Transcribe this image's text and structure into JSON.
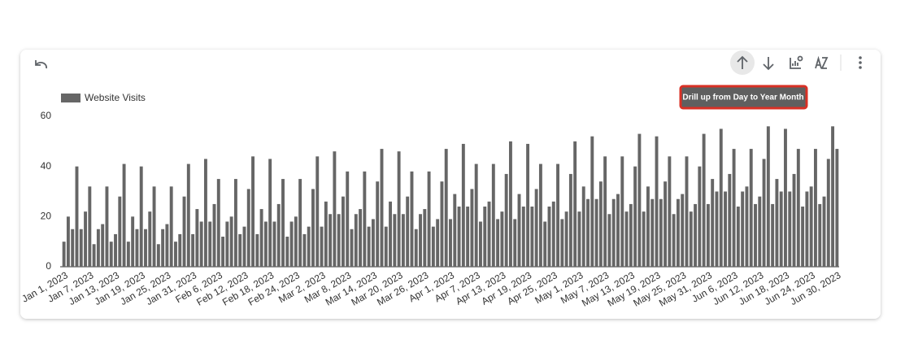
{
  "chart_data": {
    "type": "bar",
    "categories": [
      "Jan 1, 2023",
      null,
      null,
      null,
      null,
      null,
      "Jan 7, 2023",
      null,
      null,
      null,
      null,
      null,
      "Jan 13, 2023",
      null,
      null,
      null,
      null,
      null,
      "Jan 19, 2023",
      null,
      null,
      null,
      null,
      null,
      "Jan 25, 2023",
      null,
      null,
      null,
      null,
      null,
      "Jan 31, 2023",
      null,
      null,
      null,
      null,
      null,
      "Feb 6, 2023",
      null,
      null,
      null,
      null,
      null,
      "Feb 12, 2023",
      null,
      null,
      null,
      null,
      null,
      "Feb 18, 2023",
      null,
      null,
      null,
      null,
      null,
      "Feb 24, 2023",
      null,
      null,
      null,
      null,
      null,
      "Mar 2, 2023",
      null,
      null,
      null,
      null,
      null,
      "Mar 8, 2023",
      null,
      null,
      null,
      null,
      null,
      "Mar 14, 2023",
      null,
      null,
      null,
      null,
      null,
      "Mar 20, 2023",
      null,
      null,
      null,
      null,
      null,
      "Mar 26, 2023",
      null,
      null,
      null,
      null,
      null,
      "Apr 1, 2023",
      null,
      null,
      null,
      null,
      null,
      "Apr 7, 2023",
      null,
      null,
      null,
      null,
      null,
      "Apr 13, 2023",
      null,
      null,
      null,
      null,
      null,
      "Apr 19, 2023",
      null,
      null,
      null,
      null,
      null,
      "Apr 25, 2023",
      null,
      null,
      null,
      null,
      null,
      "May 1, 2023",
      null,
      null,
      null,
      null,
      null,
      "May 7, 2023",
      null,
      null,
      null,
      null,
      null,
      "May 13, 2023",
      null,
      null,
      null,
      null,
      null,
      "May 19, 2023",
      null,
      null,
      null,
      null,
      null,
      "May 25, 2023",
      null,
      null,
      null,
      null,
      null,
      "May 31, 2023",
      null,
      null,
      null,
      null,
      null,
      "Jun 6, 2023",
      null,
      null,
      null,
      null,
      null,
      "Jun 12, 2023",
      null,
      null,
      null,
      null,
      null,
      "Jun 18, 2023",
      null,
      null,
      null,
      null,
      null,
      "Jun 24, 2023",
      null,
      null,
      null,
      null,
      null,
      "Jun 30, 2023"
    ],
    "series": [
      {
        "name": "Website Visits",
        "color": "#666666",
        "values": [
          10,
          20,
          15,
          40,
          15,
          22,
          32,
          9,
          15,
          17,
          32,
          10,
          13,
          28,
          41,
          10,
          20,
          15,
          40,
          15,
          22,
          32,
          9,
          15,
          17,
          32,
          10,
          13,
          28,
          41,
          13,
          23,
          18,
          43,
          18,
          25,
          35,
          12,
          18,
          20,
          35,
          13,
          16,
          31,
          44,
          13,
          23,
          18,
          43,
          18,
          25,
          35,
          12,
          18,
          20,
          35,
          13,
          16,
          31,
          44,
          16,
          26,
          21,
          46,
          21,
          28,
          38,
          15,
          21,
          23,
          38,
          16,
          19,
          34,
          47,
          16,
          26,
          21,
          46,
          21,
          28,
          38,
          15,
          21,
          23,
          38,
          16,
          19,
          34,
          47,
          19,
          29,
          24,
          49,
          24,
          31,
          41,
          18,
          24,
          26,
          41,
          19,
          22,
          37,
          50,
          19,
          29,
          24,
          49,
          24,
          31,
          41,
          18,
          24,
          26,
          41,
          19,
          22,
          37,
          50,
          22,
          32,
          27,
          52,
          27,
          34,
          44,
          21,
          27,
          29,
          44,
          22,
          25,
          40,
          53,
          22,
          32,
          27,
          52,
          27,
          34,
          44,
          21,
          27,
          29,
          44,
          22,
          25,
          40,
          53,
          25,
          35,
          30,
          55,
          30,
          37,
          47,
          24,
          30,
          32,
          47,
          25,
          28,
          43,
          56,
          25,
          35,
          30,
          55,
          30,
          37,
          47,
          24,
          30,
          32,
          47,
          25,
          28,
          43,
          56,
          47
        ]
      }
    ],
    "ylim": [
      0,
      60
    ],
    "yticks": [
      0,
      20,
      40,
      60
    ],
    "grid": false,
    "legend": "top-left"
  },
  "tooltip": "Drill up from Day to Year Month"
}
